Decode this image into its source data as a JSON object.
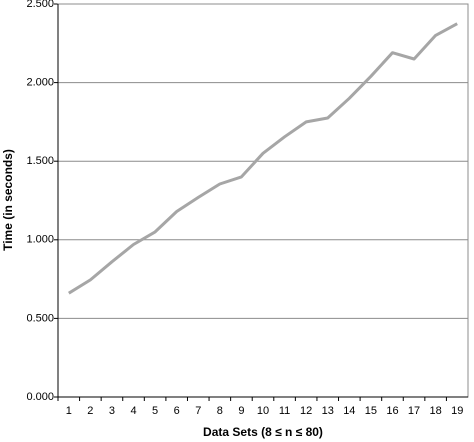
{
  "chart_data": {
    "type": "line",
    "x_label": "Data Sets (8 ≤ n ≤ 80)",
    "y_label": "Time (in seconds)",
    "categories": [
      "1",
      "2",
      "3",
      "4",
      "5",
      "6",
      "7",
      "8",
      "9",
      "10",
      "11",
      "12",
      "13",
      "14",
      "15",
      "16",
      "17",
      "18",
      "19"
    ],
    "series": [
      {
        "color": "#a6a6a6",
        "values": [
          0.66,
          0.745,
          0.86,
          0.97,
          1.05,
          1.18,
          1.27,
          1.355,
          1.4,
          1.55,
          1.655,
          1.75,
          1.775,
          1.9,
          2.04,
          2.19,
          2.15,
          2.3,
          2.375
        ]
      }
    ],
    "ylim": [
      0,
      2.5
    ],
    "yticks": [
      {
        "value": 0,
        "label": "0.000"
      },
      {
        "value": 0.5,
        "label": "0.500"
      },
      {
        "value": 1,
        "label": "1.000"
      },
      {
        "value": 1.5,
        "label": "1.500"
      },
      {
        "value": 2,
        "label": "2.000"
      },
      {
        "value": 2.5,
        "label": "2.500"
      }
    ],
    "grid": true
  }
}
